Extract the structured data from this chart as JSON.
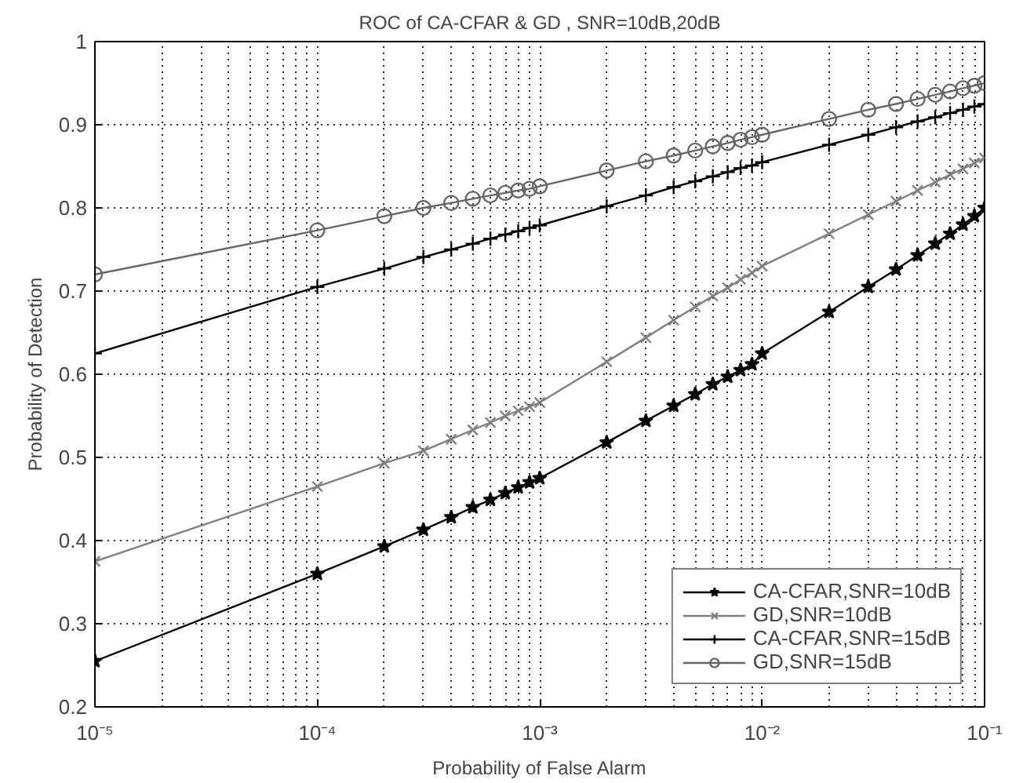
{
  "chart_data": {
    "type": "line",
    "title": "ROC of CA-CFAR & GD , SNR=10dB,20dB",
    "xlabel": "Probability of False Alarm",
    "ylabel": "Probability of Detection",
    "log": "x",
    "xlim": [
      1e-05,
      0.1
    ],
    "ylim": [
      0.2,
      1
    ],
    "xticks": [
      {
        "value": 1e-05,
        "label": "10⁻⁵"
      },
      {
        "value": 0.0001,
        "label": "10⁻⁴"
      },
      {
        "value": 0.001,
        "label": "10⁻³"
      },
      {
        "value": 0.01,
        "label": "10⁻²"
      },
      {
        "value": 0.1,
        "label": "10⁻¹"
      }
    ],
    "yticks": [
      0.2,
      0.3,
      0.4,
      0.5,
      0.6,
      0.7,
      0.8,
      0.9,
      1
    ],
    "grid": true,
    "legend": "bottom right",
    "line_style": "solid",
    "x": [
      1e-05,
      0.0001,
      0.0002,
      0.0003,
      0.0004,
      0.0005,
      0.0006,
      0.0007,
      0.0008,
      0.0009,
      0.001,
      0.002,
      0.003,
      0.004,
      0.005,
      0.006,
      0.007,
      0.008,
      0.009,
      0.01,
      0.02,
      0.03,
      0.04,
      0.05,
      0.06,
      0.07,
      0.08,
      0.09,
      0.1
    ],
    "series": [
      {
        "name": "CA-CFAR,SNR=10dB",
        "color": "#000000",
        "marker": "star",
        "values": [
          0.255,
          0.36,
          0.393,
          0.413,
          0.428,
          0.44,
          0.449,
          0.457,
          0.464,
          0.47,
          0.475,
          0.518,
          0.544,
          0.562,
          0.576,
          0.588,
          0.597,
          0.605,
          0.612,
          0.625,
          0.675,
          0.705,
          0.726,
          0.743,
          0.757,
          0.769,
          0.78,
          0.79,
          0.8
        ]
      },
      {
        "name": "GD,SNR=10dB",
        "color": "#808080",
        "marker": "x",
        "values": [
          0.375,
          0.465,
          0.493,
          0.508,
          0.522,
          0.533,
          0.542,
          0.55,
          0.556,
          0.561,
          0.566,
          0.615,
          0.644,
          0.665,
          0.681,
          0.694,
          0.704,
          0.714,
          0.722,
          0.73,
          0.769,
          0.792,
          0.808,
          0.821,
          0.831,
          0.84,
          0.847,
          0.854,
          0.86
        ]
      },
      {
        "name": "CA-CFAR,SNR=15dB",
        "color": "#000000",
        "marker": "plus",
        "values": [
          0.625,
          0.705,
          0.727,
          0.741,
          0.75,
          0.757,
          0.763,
          0.768,
          0.772,
          0.776,
          0.779,
          0.802,
          0.815,
          0.825,
          0.832,
          0.838,
          0.843,
          0.848,
          0.851,
          0.855,
          0.876,
          0.888,
          0.897,
          0.904,
          0.909,
          0.914,
          0.918,
          0.922,
          0.925
        ]
      },
      {
        "name": "GD,SNR=15dB",
        "color": "#666666",
        "marker": "circle",
        "values": [
          0.72,
          0.773,
          0.79,
          0.8,
          0.806,
          0.811,
          0.815,
          0.818,
          0.821,
          0.823,
          0.826,
          0.845,
          0.856,
          0.863,
          0.869,
          0.874,
          0.878,
          0.882,
          0.885,
          0.888,
          0.907,
          0.918,
          0.925,
          0.931,
          0.936,
          0.94,
          0.944,
          0.947,
          0.95
        ]
      }
    ]
  }
}
